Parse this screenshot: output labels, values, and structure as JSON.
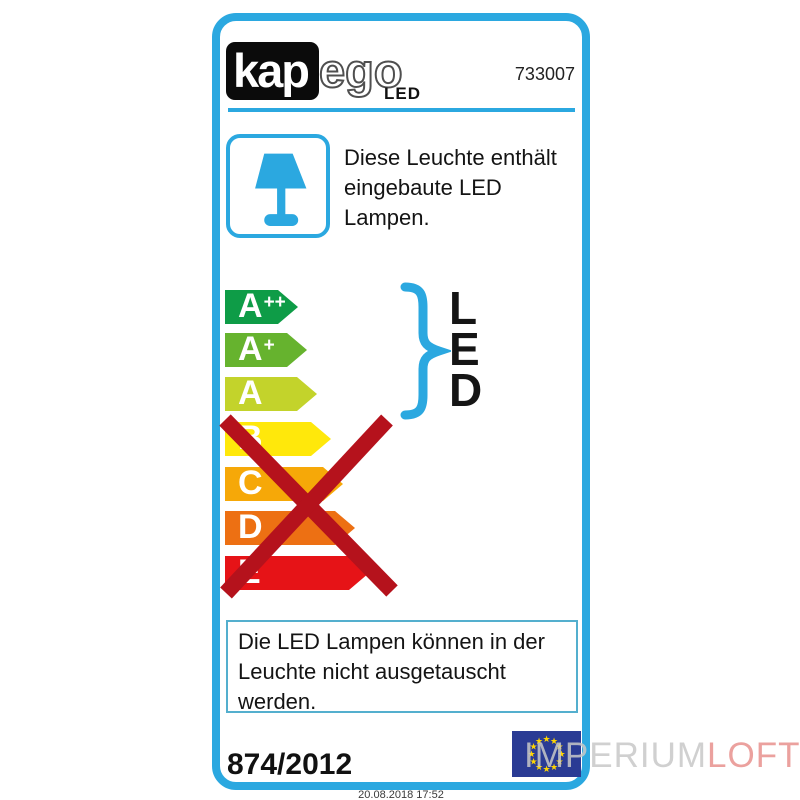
{
  "colors": {
    "accent": "#2BA8E0",
    "frame_border": "#2BA8E0",
    "bottom_box_border": "#54AFCE",
    "logo_bg": "#0B0B0B"
  },
  "header": {
    "brand_kap": "kap",
    "brand_ego": "ego",
    "brand_sub": "LED",
    "part_number": "733007"
  },
  "notice_top": {
    "lines": [
      "Diese Leuchte enthält",
      "eingebaute LED",
      "Lampen."
    ]
  },
  "energy_scale": {
    "arrows": [
      {
        "label": "A",
        "sup": "++",
        "color": "#0E9C47"
      },
      {
        "label": "A",
        "sup": "+",
        "color": "#66B32E"
      },
      {
        "label": "A",
        "sup": "",
        "color": "#C3D32B"
      },
      {
        "label": "B",
        "sup": "",
        "color": "#FFE80B"
      },
      {
        "label": "C",
        "sup": "",
        "color": "#F6A808"
      },
      {
        "label": "D",
        "sup": "",
        "color": "#ED7013"
      },
      {
        "label": "E",
        "sup": "",
        "color": "#E61317"
      }
    ],
    "brace_color": "#2BA8E0",
    "led_letters": [
      "L",
      "E",
      "D"
    ],
    "cross_color": "#B5121C"
  },
  "notice_bottom": {
    "lines": [
      "Die LED Lampen können in der",
      "Leuchte nicht ausgetauscht",
      "werden."
    ]
  },
  "footer": {
    "regulation": "874/2012",
    "eu_flag": {
      "bg": "#2A3B94",
      "star_color": "#FFD500",
      "stars": 12
    },
    "timestamp": "20.08.2018 17:52"
  },
  "watermark": {
    "gray_part": "IMPERIUM",
    "red_part": "LOFT",
    "gray_color": "#C8C8C8",
    "red_color": "#E8918E"
  },
  "lamp_icon_color": "#2BA8E0"
}
